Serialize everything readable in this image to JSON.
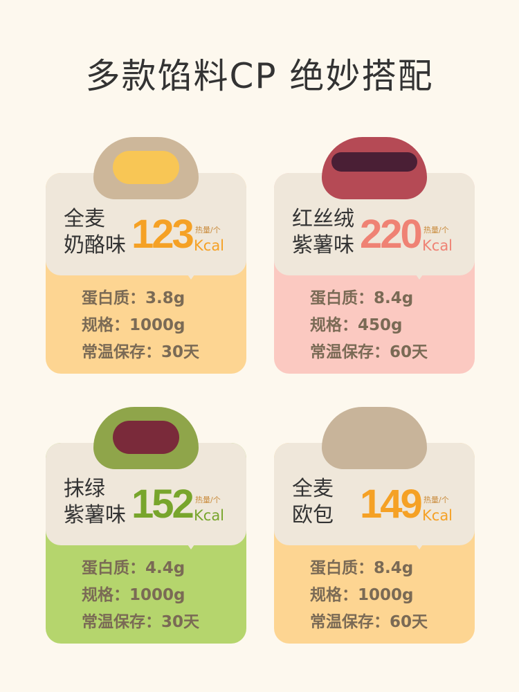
{
  "title": "多款馅料CP 绝妙搭配",
  "products": [
    {
      "name1": "全麦",
      "name2": "奶酪味",
      "kcal": "123",
      "unit": "热量/个",
      "kcal_label": "Kcal",
      "protein": "蛋白质：3.8g",
      "spec": "规格：1000g",
      "storage": "常温保存：30天",
      "accent": "#f5a125",
      "card_color": "#fdd592"
    },
    {
      "name1": "红丝绒",
      "name2": "紫薯味",
      "kcal": "220",
      "unit": "热量/个",
      "kcal_label": "Kcal",
      "protein": "蛋白质：8.4g",
      "spec": "规格：450g",
      "storage": "常温保存：60天",
      "accent": "#ef8274",
      "card_color": "#fbc9c1"
    },
    {
      "name1": "抹绿",
      "name2": "紫薯味",
      "kcal": "152",
      "unit": "热量/个",
      "kcal_label": "Kcal",
      "protein": "蛋白质：4.4g",
      "spec": "规格：1000g",
      "storage": "常温保存：30天",
      "accent": "#78a52c",
      "card_color": "#b5d56d"
    },
    {
      "name1": "全麦",
      "name2": "欧包",
      "kcal": "149",
      "unit": "热量/个",
      "kcal_label": "Kcal",
      "protein": "蛋白质：8.4g",
      "spec": "规格：1000g",
      "storage": "常温保存：60天",
      "accent": "#f5a125",
      "card_color": "#fdd592"
    }
  ]
}
